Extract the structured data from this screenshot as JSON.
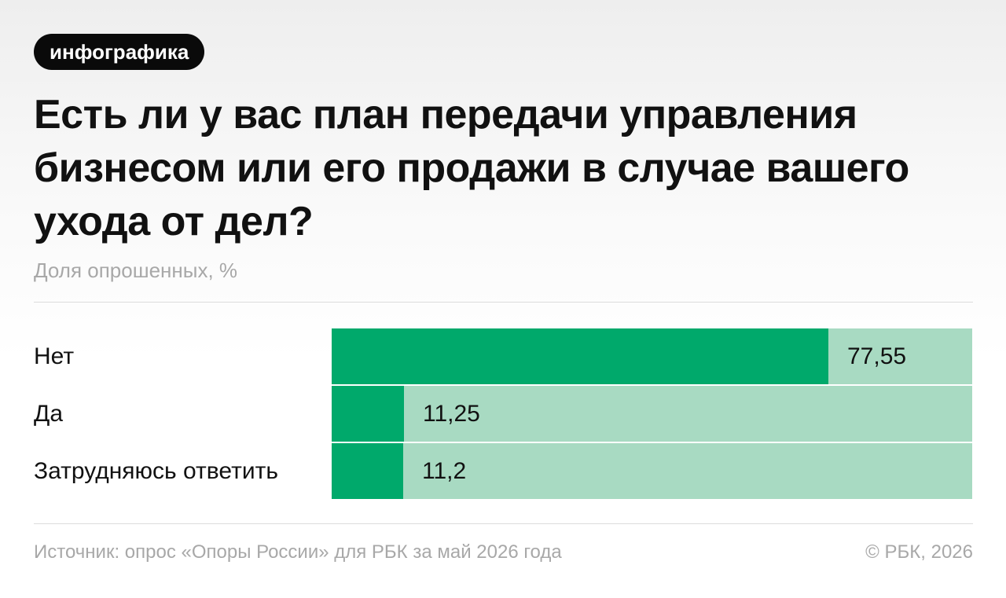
{
  "tag": "инфографика",
  "title": "Есть ли у вас план передачи управления бизнесом или его продажи в случае вашего ухода от дел?",
  "subtitle": "Доля опрошенных, %",
  "source": "Источник: опрос «Опоры России» для РБК за май 2026 года",
  "copyright": "© РБК, 2026",
  "colors": {
    "bar": "#00a96b",
    "track": "#a8dac2"
  },
  "chart_data": {
    "type": "bar",
    "orientation": "horizontal",
    "categories": [
      "Нет",
      "Да",
      "Затрудняюсь ответить"
    ],
    "values": [
      77.55,
      11.25,
      11.2
    ],
    "value_labels": [
      "77,55",
      "11,25",
      "11,2"
    ],
    "xlim": [
      0,
      100
    ],
    "grid": false,
    "title": "Есть ли у вас план передачи управления бизнесом или его продажи в случае вашего ухода от дел?",
    "xlabel": "",
    "ylabel": ""
  }
}
